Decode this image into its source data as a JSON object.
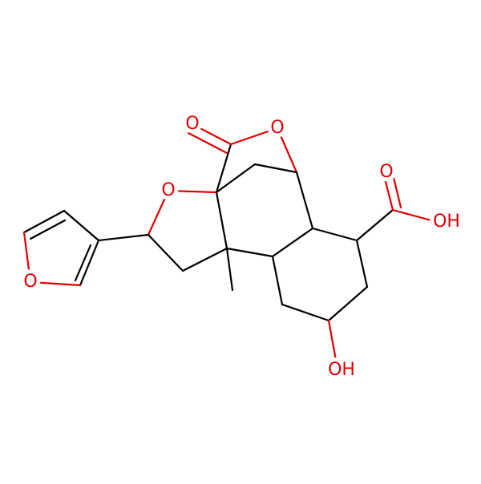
{
  "atoms": [
    {
      "label": "O"
    },
    {
      "label": "O"
    },
    {
      "label": "O"
    },
    {
      "label": "O"
    },
    {
      "label": "O"
    },
    {
      "label": "OH"
    },
    {
      "label": "OH"
    }
  ]
}
